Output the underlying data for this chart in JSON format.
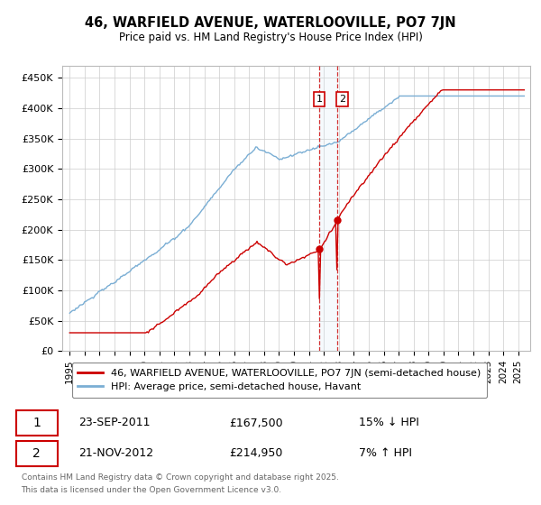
{
  "title": "46, WARFIELD AVENUE, WATERLOOVILLE, PO7 7JN",
  "subtitle": "Price paid vs. HM Land Registry's House Price Index (HPI)",
  "ylabel_ticks": [
    "£0",
    "£50K",
    "£100K",
    "£150K",
    "£200K",
    "£250K",
    "£300K",
    "£350K",
    "£400K",
    "£450K"
  ],
  "ytick_values": [
    0,
    50000,
    100000,
    150000,
    200000,
    250000,
    300000,
    350000,
    400000,
    450000
  ],
  "ylim": [
    0,
    470000
  ],
  "sale1_year": 2011.73,
  "sale1_price": 167500,
  "sale1_date": "23-SEP-2011",
  "sale1_label": "15% ↓ HPI",
  "sale2_year": 2012.89,
  "sale2_price": 214950,
  "sale2_date": "21-NOV-2012",
  "sale2_label": "7% ↑ HPI",
  "legend_label1": "46, WARFIELD AVENUE, WATERLOOVILLE, PO7 7JN (semi-detached house)",
  "legend_label2": "HPI: Average price, semi-detached house, Havant",
  "footer": "Contains HM Land Registry data © Crown copyright and database right 2025.\nThis data is licensed under the Open Government Licence v3.0.",
  "line_color_red": "#cc0000",
  "line_color_blue": "#7aaed4",
  "background_color": "#ffffff",
  "grid_color": "#cccccc",
  "xlim_left": 1994.5,
  "xlim_right": 2025.8
}
